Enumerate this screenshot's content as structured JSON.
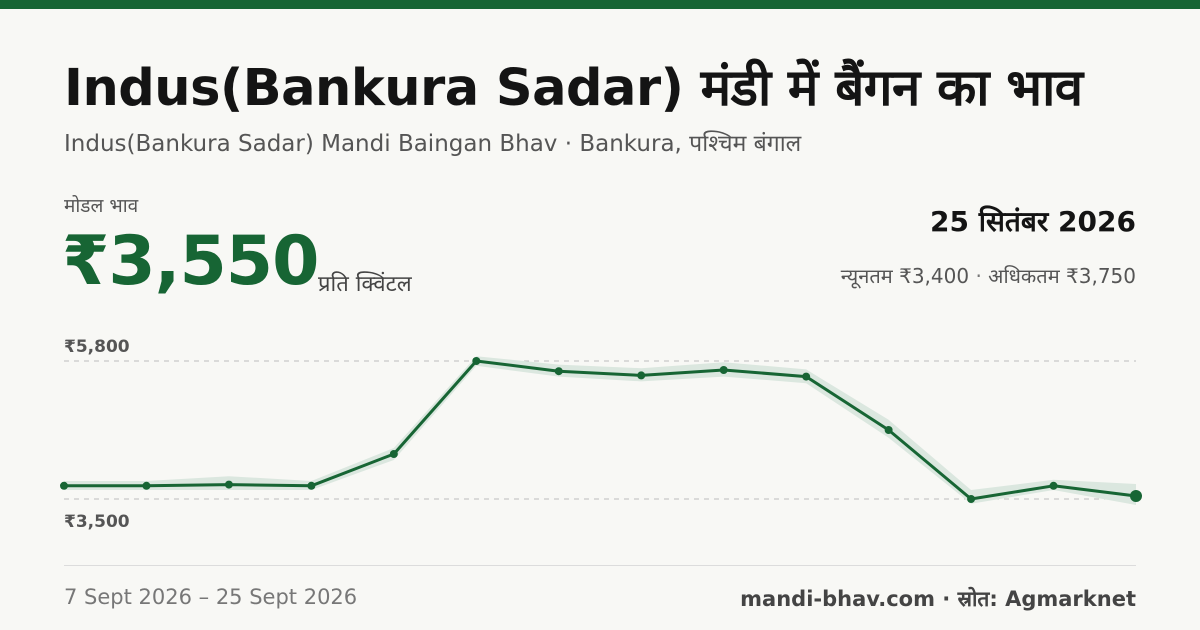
{
  "header": {
    "title": "Indus(Bankura Sadar) मंडी में बैंगन का भाव",
    "subtitle": "Indus(Bankura Sadar) Mandi Baingan Bhav · Bankura, पश्चिम बंगाल"
  },
  "price": {
    "label": "मोडल भाव",
    "value": "₹3,550",
    "unit": "प्रति क्विंटल"
  },
  "summary": {
    "date": "25 सितंबर 2026",
    "min_text": "न्यूनतम ₹3,400",
    "separator": "·",
    "max_text": "अधिकतम ₹3,750"
  },
  "footer": {
    "date_range": "7 Sept 2026 – 25 Sept 2026",
    "source": "mandi-bhav.com · स्रोत: Agmarknet"
  },
  "colors": {
    "accent": "#176534",
    "band": "#dbe7df",
    "gridline": "#bdbdbd"
  },
  "chart_data": {
    "type": "line",
    "x": [
      "7 Sept 2026",
      "",
      "",
      "",
      "",
      "",
      "",
      "",
      "",
      "",
      "",
      "",
      "",
      "25 Sept 2026"
    ],
    "series": [
      {
        "values": [
          3720,
          3720,
          3740,
          3720,
          4250,
          5800,
          5630,
          5560,
          5650,
          5540,
          4650,
          3500,
          3720,
          3550
        ]
      }
    ],
    "band_min": [
      3650,
      3650,
      3650,
      3650,
      4150,
      5720,
      5540,
      5460,
      5540,
      5430,
      4520,
      3420,
      3650,
      3400
    ],
    "band_max": [
      3800,
      3800,
      3880,
      3800,
      4350,
      5880,
      5740,
      5680,
      5780,
      5660,
      4820,
      3650,
      3820,
      3750
    ],
    "ytick_labels": [
      "₹5,800",
      "₹3,500"
    ],
    "yticks": [
      5800,
      3500
    ],
    "ylim": [
      3500,
      5800
    ],
    "grid": true
  }
}
